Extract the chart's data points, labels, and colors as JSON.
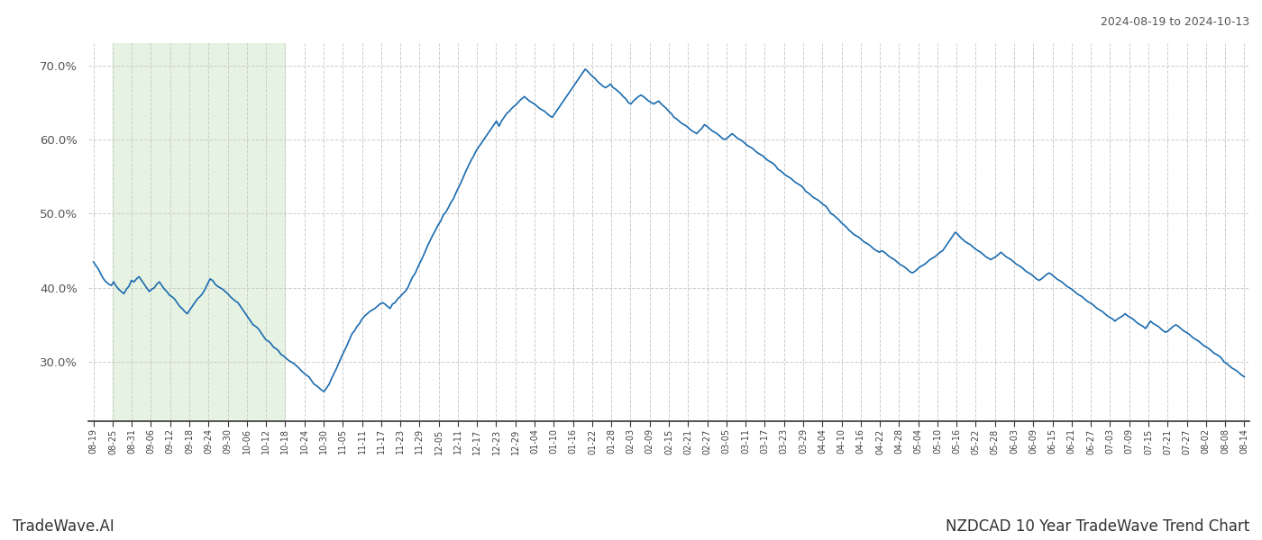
{
  "title_top_right": "2024-08-19 to 2024-10-13",
  "title_bottom_right": "NZDCAD 10 Year TradeWave Trend Chart",
  "title_bottom_left": "TradeWave.AI",
  "line_color": "#1a6baf",
  "line_width": 1.2,
  "shade_color": "#c8e6c0",
  "shade_alpha": 0.45,
  "background_color": "#ffffff",
  "grid_color": "#cccccc",
  "grid_style": "--",
  "ylim": [
    22,
    73
  ],
  "yticks": [
    30,
    40,
    50,
    60,
    70
  ],
  "x_labels": [
    "08-19",
    "08-25",
    "08-31",
    "09-06",
    "09-12",
    "09-18",
    "09-24",
    "09-30",
    "10-06",
    "10-12",
    "10-18",
    "10-24",
    "10-30",
    "11-05",
    "11-11",
    "11-17",
    "11-23",
    "11-29",
    "12-05",
    "12-11",
    "12-17",
    "12-23",
    "12-29",
    "01-04",
    "01-10",
    "01-16",
    "01-22",
    "01-28",
    "02-03",
    "02-09",
    "02-15",
    "02-21",
    "02-27",
    "03-05",
    "03-11",
    "03-17",
    "03-23",
    "03-29",
    "04-04",
    "04-10",
    "04-16",
    "04-22",
    "04-28",
    "05-04",
    "05-10",
    "05-16",
    "05-22",
    "05-28",
    "06-03",
    "06-09",
    "06-15",
    "06-21",
    "06-27",
    "07-03",
    "07-09",
    "07-15",
    "07-21",
    "07-27",
    "08-02",
    "08-08",
    "08-14"
  ],
  "shade_start_label": "08-25",
  "shade_end_label": "10-18",
  "values": [
    43.5,
    43.0,
    42.5,
    41.8,
    41.2,
    40.8,
    40.5,
    40.3,
    40.8,
    40.2,
    39.8,
    39.5,
    39.2,
    39.8,
    40.2,
    41.0,
    40.8,
    41.2,
    41.5,
    41.0,
    40.5,
    40.0,
    39.5,
    39.8,
    40.0,
    40.5,
    40.8,
    40.3,
    39.8,
    39.5,
    39.0,
    38.8,
    38.5,
    38.0,
    37.5,
    37.2,
    36.8,
    36.5,
    37.0,
    37.5,
    38.0,
    38.5,
    38.8,
    39.2,
    39.8,
    40.5,
    41.2,
    41.0,
    40.5,
    40.2,
    40.0,
    39.8,
    39.5,
    39.2,
    38.8,
    38.5,
    38.2,
    38.0,
    37.5,
    37.0,
    36.5,
    36.0,
    35.5,
    35.0,
    34.8,
    34.5,
    34.0,
    33.5,
    33.0,
    32.8,
    32.5,
    32.0,
    31.8,
    31.5,
    31.0,
    30.8,
    30.5,
    30.2,
    30.0,
    29.8,
    29.5,
    29.2,
    28.8,
    28.5,
    28.2,
    28.0,
    27.5,
    27.0,
    26.8,
    26.5,
    26.2,
    26.0,
    26.5,
    27.0,
    27.8,
    28.5,
    29.2,
    30.0,
    30.8,
    31.5,
    32.2,
    33.0,
    33.8,
    34.2,
    34.8,
    35.2,
    35.8,
    36.2,
    36.5,
    36.8,
    37.0,
    37.2,
    37.5,
    37.8,
    38.0,
    37.8,
    37.5,
    37.2,
    37.8,
    38.0,
    38.5,
    38.8,
    39.2,
    39.5,
    40.0,
    40.8,
    41.5,
    42.0,
    42.8,
    43.5,
    44.2,
    45.0,
    45.8,
    46.5,
    47.2,
    47.8,
    48.5,
    49.0,
    49.8,
    50.2,
    50.8,
    51.5,
    52.0,
    52.8,
    53.5,
    54.2,
    55.0,
    55.8,
    56.5,
    57.2,
    57.8,
    58.5,
    59.0,
    59.5,
    60.0,
    60.5,
    61.0,
    61.5,
    62.0,
    62.5,
    61.8,
    62.5,
    63.0,
    63.5,
    63.8,
    64.2,
    64.5,
    64.8,
    65.2,
    65.5,
    65.8,
    65.5,
    65.2,
    65.0,
    64.8,
    64.5,
    64.2,
    64.0,
    63.8,
    63.5,
    63.2,
    63.0,
    63.5,
    64.0,
    64.5,
    65.0,
    65.5,
    66.0,
    66.5,
    67.0,
    67.5,
    68.0,
    68.5,
    69.0,
    69.5,
    69.2,
    68.8,
    68.5,
    68.2,
    67.8,
    67.5,
    67.2,
    67.0,
    67.2,
    67.5,
    67.0,
    66.8,
    66.5,
    66.2,
    65.8,
    65.5,
    65.0,
    64.8,
    65.2,
    65.5,
    65.8,
    66.0,
    65.8,
    65.5,
    65.2,
    65.0,
    64.8,
    65.0,
    65.2,
    64.8,
    64.5,
    64.2,
    63.8,
    63.5,
    63.0,
    62.8,
    62.5,
    62.2,
    62.0,
    61.8,
    61.5,
    61.2,
    61.0,
    60.8,
    61.2,
    61.5,
    62.0,
    61.8,
    61.5,
    61.2,
    61.0,
    60.8,
    60.5,
    60.2,
    60.0,
    60.2,
    60.5,
    60.8,
    60.5,
    60.2,
    60.0,
    59.8,
    59.5,
    59.2,
    59.0,
    58.8,
    58.5,
    58.2,
    58.0,
    57.8,
    57.5,
    57.2,
    57.0,
    56.8,
    56.5,
    56.0,
    55.8,
    55.5,
    55.2,
    55.0,
    54.8,
    54.5,
    54.2,
    54.0,
    53.8,
    53.5,
    53.0,
    52.8,
    52.5,
    52.2,
    52.0,
    51.8,
    51.5,
    51.2,
    51.0,
    50.5,
    50.0,
    49.8,
    49.5,
    49.2,
    48.8,
    48.5,
    48.2,
    47.8,
    47.5,
    47.2,
    47.0,
    46.8,
    46.5,
    46.2,
    46.0,
    45.8,
    45.5,
    45.2,
    45.0,
    44.8,
    45.0,
    44.8,
    44.5,
    44.2,
    44.0,
    43.8,
    43.5,
    43.2,
    43.0,
    42.8,
    42.5,
    42.2,
    42.0,
    42.2,
    42.5,
    42.8,
    43.0,
    43.2,
    43.5,
    43.8,
    44.0,
    44.2,
    44.5,
    44.8,
    45.0,
    45.5,
    46.0,
    46.5,
    47.0,
    47.5,
    47.2,
    46.8,
    46.5,
    46.2,
    46.0,
    45.8,
    45.5,
    45.2,
    45.0,
    44.8,
    44.5,
    44.2,
    44.0,
    43.8,
    44.0,
    44.2,
    44.5,
    44.8,
    44.5,
    44.2,
    44.0,
    43.8,
    43.5,
    43.2,
    43.0,
    42.8,
    42.5,
    42.2,
    42.0,
    41.8,
    41.5,
    41.2,
    41.0,
    41.2,
    41.5,
    41.8,
    42.0,
    41.8,
    41.5,
    41.2,
    41.0,
    40.8,
    40.5,
    40.2,
    40.0,
    39.8,
    39.5,
    39.2,
    39.0,
    38.8,
    38.5,
    38.2,
    38.0,
    37.8,
    37.5,
    37.2,
    37.0,
    36.8,
    36.5,
    36.2,
    36.0,
    35.8,
    35.5,
    35.8,
    36.0,
    36.2,
    36.5,
    36.2,
    36.0,
    35.8,
    35.5,
    35.2,
    35.0,
    34.8,
    34.5,
    35.0,
    35.5,
    35.2,
    35.0,
    34.8,
    34.5,
    34.2,
    34.0,
    34.2,
    34.5,
    34.8,
    35.0,
    34.8,
    34.5,
    34.2,
    34.0,
    33.8,
    33.5,
    33.2,
    33.0,
    32.8,
    32.5,
    32.2,
    32.0,
    31.8,
    31.5,
    31.2,
    31.0,
    30.8,
    30.5,
    30.0,
    29.8,
    29.5,
    29.2,
    29.0,
    28.8,
    28.5,
    28.2,
    28.0
  ]
}
